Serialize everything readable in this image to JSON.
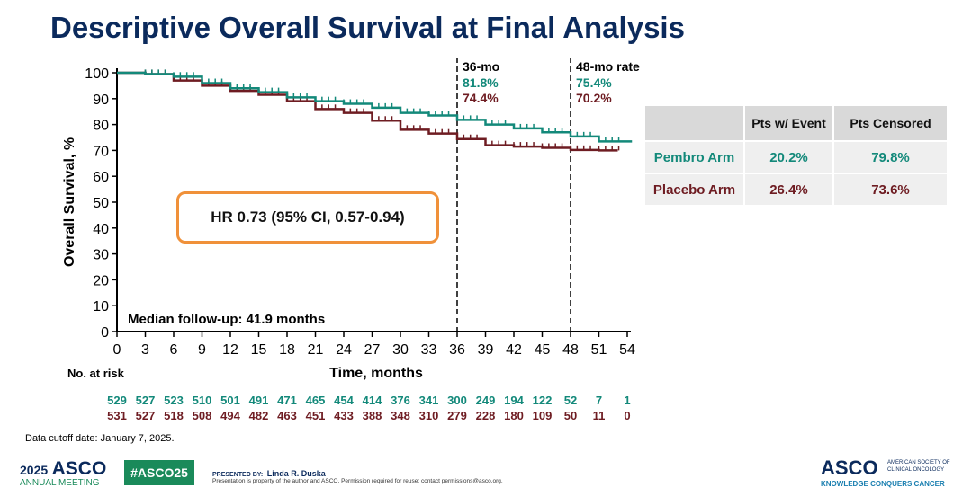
{
  "title": "Descriptive Overall Survival at Final Analysis",
  "colors": {
    "pembro": "#13897a",
    "placebo": "#6e1c22",
    "title": "#0b2a5c",
    "hr_box": "#f0913a",
    "asco_green": "#1a8a5a"
  },
  "chart_data": {
    "type": "line",
    "ylabel": "Overall Survival, %",
    "xlabel": "Time, months",
    "xlim": [
      0,
      54
    ],
    "ylim": [
      0,
      100
    ],
    "xticks": [
      0,
      3,
      6,
      9,
      12,
      15,
      18,
      21,
      24,
      27,
      30,
      33,
      36,
      39,
      42,
      45,
      48,
      51,
      54
    ],
    "yticks": [
      0,
      10,
      20,
      30,
      40,
      50,
      60,
      70,
      80,
      90,
      100
    ],
    "series": [
      {
        "name": "Pembro Arm",
        "x": [
          0,
          3,
          6,
          9,
          12,
          15,
          18,
          21,
          24,
          27,
          30,
          33,
          36,
          39,
          42,
          45,
          48,
          51,
          54.5
        ],
        "y": [
          100,
          99.5,
          98.5,
          96,
          94,
          92.5,
          90.5,
          89,
          88,
          86.5,
          84.5,
          83.5,
          81.8,
          80,
          78.5,
          77,
          75.4,
          73.5,
          73.5
        ]
      },
      {
        "name": "Placebo Arm",
        "x": [
          0,
          3,
          6,
          9,
          12,
          15,
          18,
          21,
          24,
          27,
          30,
          33,
          36,
          39,
          42,
          45,
          48,
          51,
          53
        ],
        "y": [
          100,
          99.5,
          97,
          95,
          93,
          91.5,
          89,
          86,
          84.5,
          81.5,
          78,
          76.5,
          74.4,
          72,
          71.5,
          71,
          70.2,
          70,
          70
        ]
      }
    ],
    "reference_lines": [
      {
        "x": 36,
        "label": "36-mo",
        "values": [
          "81.8%",
          "74.4%"
        ]
      },
      {
        "x": 48,
        "label": "48-mo rate",
        "values": [
          "75.4%",
          "70.2%"
        ]
      }
    ],
    "annotations": {
      "hr": "HR 0.73 (95% CI, 0.57-0.94)",
      "followup": "Median follow-up: 41.9 months"
    },
    "at_risk": {
      "label": "No. at risk",
      "pembro": [
        "529",
        "527",
        "523",
        "510",
        "501",
        "491",
        "471",
        "465",
        "454",
        "414",
        "376",
        "341",
        "300",
        "249",
        "194",
        "122",
        "52",
        "7",
        "1"
      ],
      "placebo": [
        "531",
        "527",
        "518",
        "508",
        "494",
        "482",
        "463",
        "451",
        "433",
        "388",
        "348",
        "310",
        "279",
        "228",
        "180",
        "109",
        "50",
        "11",
        "0"
      ]
    },
    "table": {
      "headers": [
        "",
        "Pts w/ Event",
        "Pts Censored"
      ],
      "rows": [
        {
          "arm": "Pembro Arm",
          "event": "20.2%",
          "censored": "79.8%"
        },
        {
          "arm": "Placebo Arm",
          "event": "26.4%",
          "censored": "73.6%"
        }
      ]
    }
  },
  "footer": {
    "cutoff": "Data cutoff date: January 7, 2025.",
    "meeting_year": "2025",
    "meeting_org": "ASCO",
    "meeting_sub": "ANNUAL MEETING",
    "hashtag": "#ASCO25",
    "presented_by": "PRESENTED BY:",
    "presenter": "Linda R. Duska",
    "disclaimer": "Presentation is property of the author and ASCO. Permission required for reuse; contact permissions@asco.org.",
    "logo": "ASCO",
    "logo_sub1": "AMERICAN SOCIETY OF",
    "logo_sub2": "CLINICAL ONCOLOGY",
    "tagline": "KNOWLEDGE CONQUERS CANCER"
  }
}
